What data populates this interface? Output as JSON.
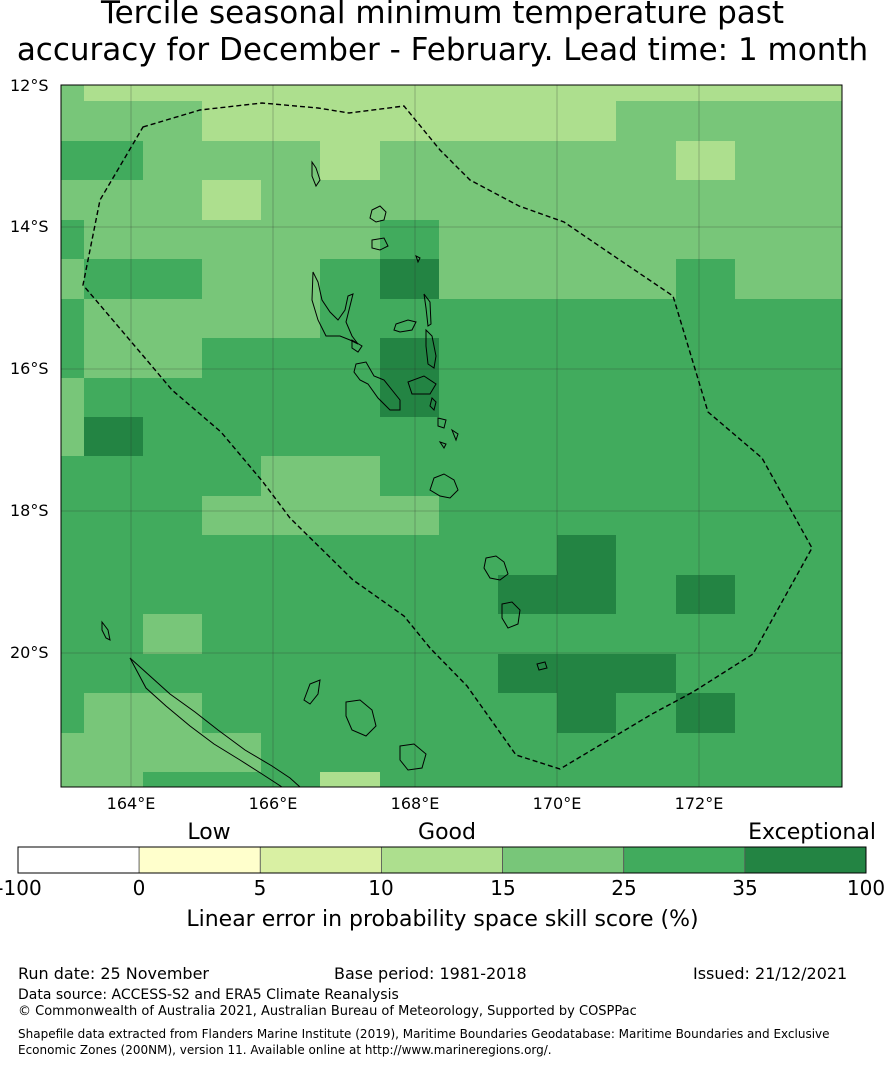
{
  "title": {
    "line1": "Tercile seasonal minimum temperature past",
    "line2": "accuracy for December - February. Lead time: 1 month"
  },
  "map": {
    "lat_range": [
      -21.9,
      -12.0
    ],
    "lon_range": [
      163.0,
      174.0
    ],
    "lat_labels": [
      "12°S",
      "14°S",
      "16°S",
      "18°S",
      "20°S"
    ],
    "lon_labels": [
      "164°E",
      "166°E",
      "168°E",
      "170°E",
      "172°E"
    ],
    "colors": {
      "bin_10_15": "#addf8e",
      "bin_15_25": "#78c679",
      "bin_25_35": "#41ab5d",
      "bin_35_100": "#238443",
      "eez_boundary": "#000000"
    }
  },
  "colorbar": {
    "category_labels": [
      "Low",
      "Good",
      "Exceptional"
    ],
    "tick_labels": [
      "-100",
      "0",
      "5",
      "10",
      "15",
      "25",
      "35",
      "100"
    ],
    "bins": [
      {
        "from": -100,
        "to": 0,
        "color": "#ffffff"
      },
      {
        "from": 0,
        "to": 5,
        "color": "#ffffcc"
      },
      {
        "from": 5,
        "to": 10,
        "color": "#d9f0a3"
      },
      {
        "from": 10,
        "to": 15,
        "color": "#addf8e"
      },
      {
        "from": 15,
        "to": 25,
        "color": "#78c679"
      },
      {
        "from": 25,
        "to": 35,
        "color": "#41ab5d"
      },
      {
        "from": 35,
        "to": 100,
        "color": "#238443"
      }
    ],
    "label": "Linear error in probability space skill score (%)"
  },
  "footer": {
    "run_date": "Run date: 25 November",
    "base_period": "Base period: 1981-2018",
    "issued": "Issued: 21/12/2021",
    "data_source": "Data source: ACCESS-S2 and ERA5 Climate Reanalysis",
    "copyright": "© Commonwealth of Australia 2021, Australian Bureau of Meteorology, Supported by COSPPac",
    "shapefile_line1": "Shapefile data extracted from Flanders Marine Institute (2019), Maritime Boundaries Geodatabase: Maritime Boundaries and Exclusive",
    "shapefile_line2": "Economic Zones (200NM), version 11. Available online at http://www.marineregions.org/."
  }
}
